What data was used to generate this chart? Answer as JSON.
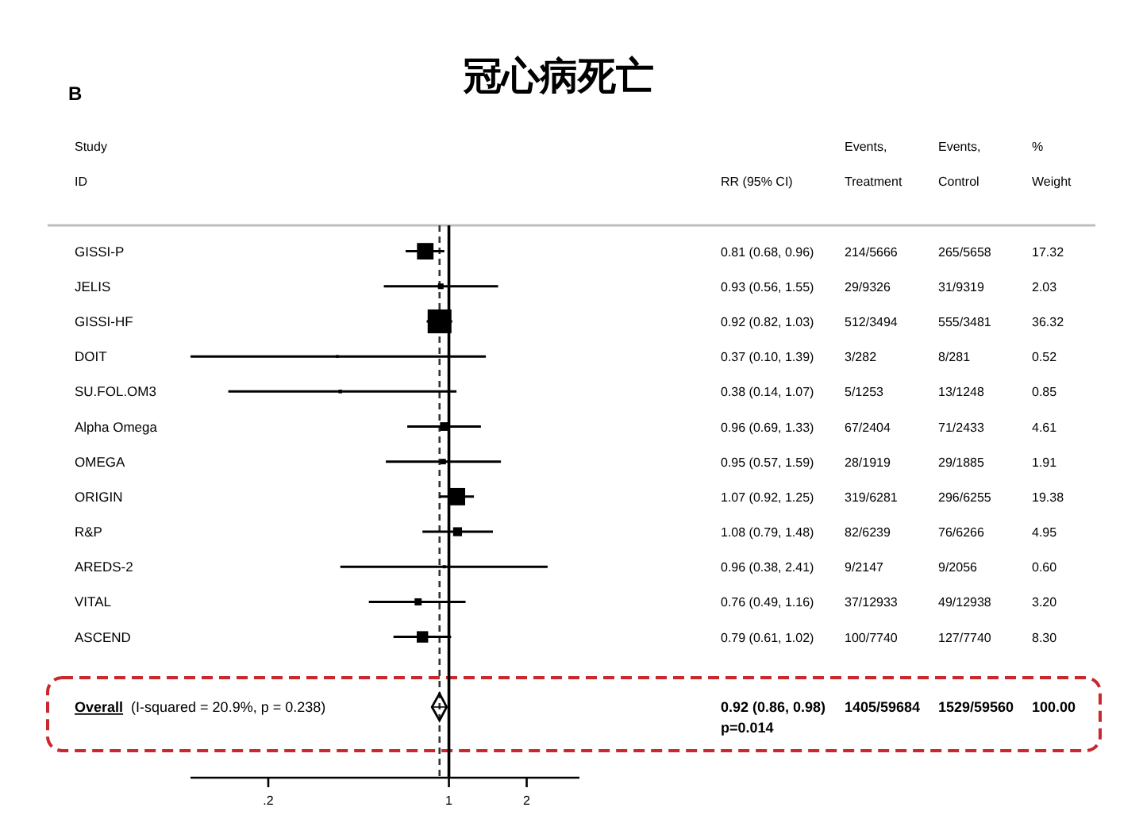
{
  "chart_data": {
    "type": "scatter",
    "title": "冠心病死亡",
    "ylabel": "Study\nID",
    "orientation": "horizontal",
    "log": "x",
    "xlim": [
      0.1,
      3.2
    ],
    "xticks": [
      {
        "value": 0.2,
        "label": ".2"
      },
      1,
      2
    ],
    "categories": [
      "GISSI-P",
      "JELIS",
      "GISSI-HF",
      "DOIT",
      "SU.FOL.OM3",
      "Alpha Omega",
      "OMEGA",
      "ORIGIN",
      "R&P",
      "AREDS-2",
      "VITAL",
      "ASCEND",
      null,
      "Overall"
    ],
    "series": [
      {
        "marker": "square",
        "color": "#000000",
        "values": [
          0.81,
          0.93,
          0.92,
          0.37,
          0.38,
          0.96,
          0.95,
          1.07,
          1.08,
          0.96,
          0.76,
          0.79,
          null,
          null
        ],
        "errors": [
          [
            0.68,
            0.96
          ],
          [
            0.56,
            1.55
          ],
          [
            0.82,
            1.03
          ],
          [
            0.1,
            1.39
          ],
          [
            0.14,
            1.07
          ],
          [
            0.69,
            1.33
          ],
          [
            0.57,
            1.59
          ],
          [
            0.92,
            1.25
          ],
          [
            0.79,
            1.48
          ],
          [
            0.38,
            2.41
          ],
          [
            0.49,
            1.16
          ],
          [
            0.61,
            1.02
          ],
          null,
          null
        ],
        "sizes": [
          0.48,
          0.056,
          1,
          0.014,
          0.023,
          0.13,
          0.053,
          0.53,
          0.14,
          0.017,
          0.088,
          0.23,
          null,
          null
        ],
        "value_labels": [
          "0.81 (0.68, 0.96)",
          "0.93 (0.56, 1.55)",
          "0.92 (0.82, 1.03)",
          "0.37 (0.10, 1.39)",
          "0.38 (0.14, 1.07)",
          "0.96 (0.69, 1.33)",
          "0.95 (0.57, 1.59)",
          "1.07 (0.92, 1.25)",
          "1.08 (0.79, 1.48)",
          "0.96 (0.38, 2.41)",
          "0.76 (0.49, 1.16)",
          "0.79 (0.61, 1.02)",
          null,
          null
        ]
      },
      {
        "marker": "diamond",
        "color": "#000000",
        "values": [
          null,
          null,
          null,
          null,
          null,
          null,
          null,
          null,
          null,
          null,
          null,
          null,
          null,
          0.92
        ],
        "errors": [
          null,
          null,
          null,
          null,
          null,
          null,
          null,
          null,
          null,
          null,
          null,
          null,
          null,
          [
            0.86,
            0.98
          ]
        ]
      }
    ],
    "ref_lines": [
      {
        "axis": "x",
        "value": 1,
        "color": "#000000",
        "line_style": "solid"
      },
      {
        "axis": "x",
        "value": 0.92,
        "color": "#333333",
        "line_style": "dashed"
      }
    ],
    "annotations": [
      "B",
      "(I-squared = 20.9%, p = 0.238)",
      "0.92 (0.86, 0.98)\np=0.014",
      "RR (95% CI)",
      "Events,\nTreatment",
      "Events,\nControl",
      "%\nWeight",
      "214/5666",
      "265/5658",
      "17.32",
      "29/9326",
      "31/9319",
      "2.03",
      "512/3494",
      "555/3481",
      "36.32",
      "3/282",
      "8/281",
      "0.52",
      "5/1253",
      "13/1248",
      "0.85",
      "67/2404",
      "71/2433",
      "4.61",
      "28/1919",
      "29/1885",
      "1.91",
      "319/6281",
      "296/6255",
      "19.38",
      "82/6239",
      "76/6266",
      "4.95",
      "9/2147",
      "9/2056",
      "0.60",
      "37/12933",
      "49/12938",
      "3.20",
      "100/7740",
      "127/7740",
      "8.30",
      "1405/59684",
      "1529/59560",
      "100.00"
    ]
  }
}
